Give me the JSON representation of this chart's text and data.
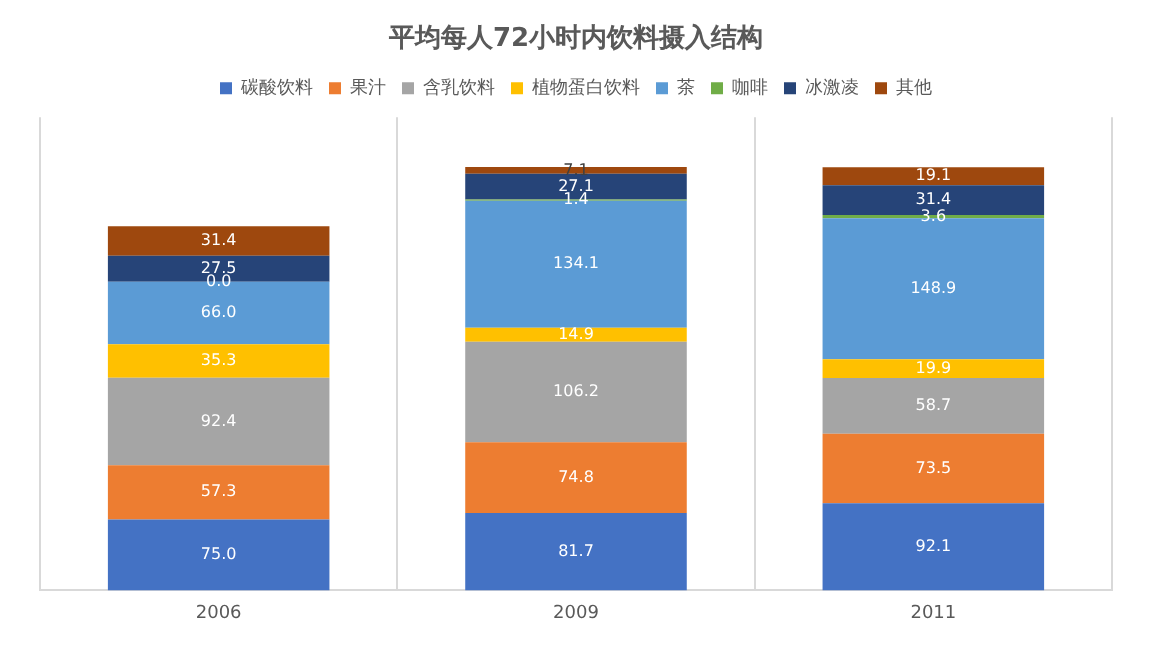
{
  "chart_data": {
    "type": "bar",
    "title": "平均每人72小时内饮料摄入结构",
    "categories": [
      "2006",
      "2009",
      "2011"
    ],
    "stacked": true,
    "grid": "x",
    "legend": "top",
    "series": [
      {
        "name": "碳酸饮料",
        "color": "#4472c4",
        "values": [
          75.0,
          81.7,
          92.1
        ],
        "value_labels": [
          "75.0",
          "81.7",
          "92.1"
        ]
      },
      {
        "name": "果汁",
        "color": "#ed7d31",
        "values": [
          57.3,
          74.8,
          73.5
        ],
        "value_labels": [
          "57.3",
          "74.8",
          "73.5"
        ]
      },
      {
        "name": "含乳饮料",
        "color": "#a5a5a5",
        "values": [
          92.4,
          106.2,
          58.7
        ],
        "value_labels": [
          "92.4",
          "106.2",
          "58.7"
        ]
      },
      {
        "name": "植物蛋白饮料",
        "color": "#ffc000",
        "values": [
          35.3,
          14.9,
          19.9
        ],
        "value_labels": [
          "35.3",
          "14.9",
          "19.9"
        ]
      },
      {
        "name": "茶",
        "color": "#5b9bd5",
        "values": [
          66.0,
          134.1,
          148.9
        ],
        "value_labels": [
          "66.0",
          "134.1",
          "148.9"
        ]
      },
      {
        "name": "咖啡",
        "color": "#70ad47",
        "values": [
          0.0,
          1.4,
          3.6
        ],
        "value_labels": [
          "0.0",
          "1.4",
          "3.6"
        ]
      },
      {
        "name": "冰激凌",
        "color": "#264478",
        "values": [
          27.5,
          27.1,
          31.4
        ],
        "value_labels": [
          "27.5",
          "27.1",
          "31.4"
        ]
      },
      {
        "name": "其他",
        "color": "#9e480e",
        "values": [
          31.4,
          7.1,
          19.1
        ],
        "value_labels": [
          "31.4",
          "7.1",
          "19.1"
        ]
      }
    ]
  }
}
